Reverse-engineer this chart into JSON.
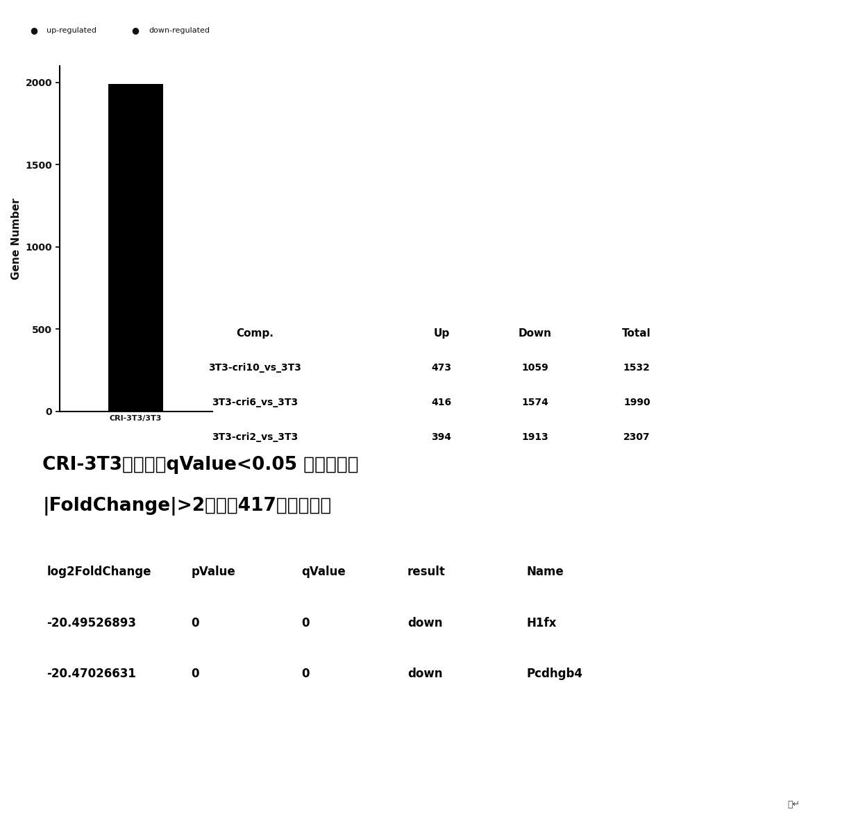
{
  "bar_value": 1990,
  "bar_color": "#000000",
  "bar_label": "CRI-3T3/3T3",
  "ylabel": "Gene Number",
  "yticks": [
    0,
    500,
    1000,
    1500,
    2000
  ],
  "ylim": [
    0,
    2100
  ],
  "table_header": [
    "Comp.",
    "Up",
    "Down",
    "Total"
  ],
  "table_rows": [
    [
      "3T3-cri10_vs_3T3",
      "473",
      "1059",
      "1532"
    ],
    [
      "3T3-cri6_vs_3T3",
      "416",
      "1574",
      "1990"
    ],
    [
      "3T3-cri2_vs_3T3",
      "394",
      "1913",
      "2307"
    ]
  ],
  "annotation_line1": "CRI-3T3细胞中，qValue<0.05 且差异倍数",
  "annotation_line2": "|FoldChange|>2的共有417个基因下调",
  "data_table_headers": [
    "log2FoldChange",
    "pValue",
    "qValue",
    "result",
    "Name"
  ],
  "data_table_rows": [
    [
      "-20.49526893",
      "0",
      "0",
      "down",
      "H1fx"
    ],
    [
      "-20.47026631",
      "0",
      "0",
      "down",
      "Pcdhgb4"
    ]
  ],
  "background_color": "#ffffff",
  "text_color": "#000000"
}
